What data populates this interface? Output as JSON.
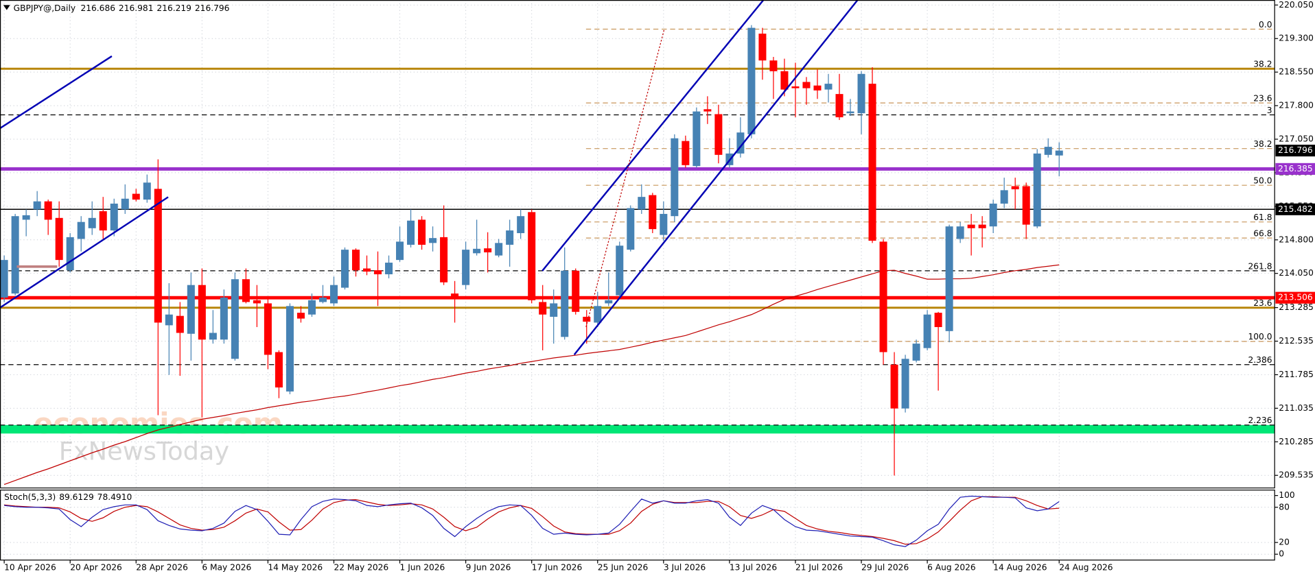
{
  "chart_data": {
    "type": "candlestick",
    "title": "GBPJPY@,Daily",
    "categories": [
      "10 Apr 2026",
      null,
      null,
      null,
      null,
      null,
      "20 Apr 2026",
      null,
      null,
      null,
      null,
      null,
      "28 Apr 2026",
      null,
      null,
      null,
      null,
      null,
      "6 May 2026",
      null,
      null,
      null,
      null,
      null,
      "14 May 2026",
      null,
      null,
      null,
      null,
      null,
      "22 May 2026",
      null,
      null,
      null,
      null,
      null,
      "1 Jun 2026",
      null,
      null,
      null,
      null,
      null,
      "9 Jun 2026",
      null,
      null,
      null,
      null,
      null,
      "17 Jun 2026",
      null,
      null,
      null,
      null,
      null,
      "25 Jun 2026",
      null,
      null,
      null,
      null,
      null,
      "3 Jul 2026",
      null,
      null,
      null,
      null,
      null,
      "13 Jul 2026",
      null,
      null,
      null,
      null,
      null,
      "21 Jul 2026",
      null,
      null,
      null,
      null,
      null,
      "29 Jul 2026",
      null,
      null,
      null,
      null,
      null,
      "6 Aug 2026",
      null,
      null,
      null,
      null,
      null,
      "14 Aug 2026",
      null,
      null,
      null,
      null,
      null,
      "24 Aug 2026"
    ],
    "open": [
      213.51,
      213.6,
      215.25,
      215.48,
      215.66,
      215.29,
      214.12,
      214.82,
      215.06,
      215.44,
      215.01,
      215.48,
      215.83,
      215.7,
      215.94,
      212.89,
      213.1,
      212.7,
      213.79,
      212.57,
      212.57,
      212.14,
      213.92,
      213.45,
      213.38,
      212.29,
      211.41,
      213.17,
      213.13,
      213.41,
      213.38,
      213.73,
      214.58,
      214.16,
      214.12,
      214.03,
      214.35,
      214.69,
      215.25,
      214.73,
      214.86,
      213.6,
      213.79,
      214.5,
      214.61,
      214.45,
      214.69,
      214.95,
      215.42,
      213.41,
      213.08,
      212.63,
      214.11,
      213.08,
      212.95,
      213.38,
      213.56,
      214.58,
      215.48,
      215.8,
      214.91,
      215.33,
      217.01,
      216.45,
      217.72,
      217.61,
      216.47,
      216.73,
      217.16,
      219.41,
      218.81,
      218.57,
      218.23,
      218.33,
      218.25,
      218.16,
      218.06,
      217.63,
      217.63,
      218.29,
      214.76,
      212.01,
      211.03,
      212.1,
      212.38,
      213.17,
      212.76,
      214.82,
      215.14,
      215.14,
      215.1,
      215.61,
      216.0,
      216.0,
      215.1,
      216.7,
      216.686
    ],
    "high": [
      214.45,
      215.38,
      215.48,
      215.89,
      215.7,
      215.66,
      214.95,
      215.33,
      215.66,
      215.76,
      215.72,
      216.04,
      215.94,
      216.26,
      216.6,
      213.83,
      213.41,
      214.07,
      214.16,
      213.23,
      213.69,
      214.07,
      214.16,
      213.79,
      213.51,
      212.33,
      213.38,
      213.32,
      213.6,
      213.79,
      213.98,
      214.63,
      214.61,
      214.45,
      214.54,
      214.45,
      215.1,
      215.48,
      215.33,
      215.1,
      215.57,
      213.88,
      214.76,
      215.25,
      214.97,
      214.82,
      215.25,
      215.48,
      215.48,
      213.79,
      213.69,
      214.63,
      214.16,
      213.23,
      213.64,
      214.07,
      214.76,
      215.57,
      216.04,
      215.85,
      215.66,
      217.16,
      217.13,
      217.76,
      218.01,
      217.82,
      217.07,
      217.54,
      219.6,
      219.54,
      218.89,
      218.85,
      218.76,
      218.44,
      218.61,
      218.51,
      218.51,
      217.95,
      218.57,
      218.66,
      214.82,
      212.29,
      212.23,
      212.57,
      213.23,
      213.19,
      215.14,
      215.2,
      215.38,
      215.33,
      215.7,
      216.19,
      216.19,
      216.08,
      216.83,
      217.07,
      216.981
    ],
    "low": [
      213.41,
      213.56,
      214.88,
      215.33,
      214.91,
      214.2,
      214.07,
      214.54,
      214.91,
      214.82,
      214.88,
      215.38,
      215.66,
      215.63,
      210.88,
      211.78,
      211.76,
      212.1,
      210.83,
      212.48,
      212.48,
      212.1,
      213.38,
      212.85,
      211.91,
      211.26,
      211.35,
      212.95,
      213.08,
      213.38,
      213.32,
      213.69,
      213.98,
      214.01,
      213.32,
      213.94,
      214.31,
      214.63,
      214.58,
      214.54,
      213.79,
      212.95,
      213.69,
      214.45,
      214.07,
      214.41,
      214.2,
      214.82,
      213.38,
      212.33,
      212.48,
      212.57,
      213.13,
      212.48,
      212.85,
      213.32,
      213.51,
      214.54,
      215.38,
      214.95,
      214.78,
      215.2,
      216.41,
      216.41,
      217.39,
      216.51,
      216.41,
      216.64,
      217.07,
      218.38,
      217.95,
      218.01,
      217.54,
      217.82,
      217.95,
      217.87,
      217.48,
      217.57,
      217.16,
      214.73,
      212.01,
      209.53,
      210.94,
      212.06,
      212.33,
      211.43,
      212.51,
      214.73,
      214.45,
      214.63,
      214.95,
      215.51,
      215.48,
      214.82,
      215.06,
      216.64,
      216.219
    ],
    "close": [
      214.35,
      215.33,
      215.35,
      215.66,
      215.25,
      214.35,
      214.86,
      215.2,
      215.29,
      215.01,
      215.61,
      215.72,
      215.7,
      216.08,
      212.95,
      213.13,
      212.72,
      213.79,
      212.57,
      212.72,
      213.51,
      213.92,
      213.41,
      213.38,
      212.23,
      211.5,
      213.32,
      213.04,
      213.45,
      213.51,
      213.79,
      214.58,
      214.12,
      214.09,
      214.03,
      214.29,
      214.76,
      215.23,
      214.69,
      214.84,
      213.85,
      213.51,
      214.58,
      214.6,
      214.52,
      214.73,
      215.01,
      215.33,
      213.45,
      213.13,
      213.38,
      214.11,
      213.19,
      212.97,
      213.32,
      213.45,
      214.67,
      215.51,
      215.76,
      215.04,
      215.38,
      217.07,
      216.47,
      217.67,
      217.67,
      216.7,
      216.73,
      217.2,
      219.54,
      218.81,
      218.57,
      218.16,
      218.19,
      218.19,
      218.14,
      218.29,
      217.54,
      217.67,
      218.51,
      214.78,
      212.29,
      211.03,
      212.14,
      212.48,
      213.13,
      212.85,
      215.1,
      215.1,
      215.06,
      215.06,
      215.61,
      215.91,
      215.93,
      215.14,
      216.73,
      216.88,
      216.796
    ],
    "up_color": "#4682b4",
    "down_color": "#ff0000",
    "ylim": [
      209.253,
      220.162
    ],
    "yticks": [
      {
        "value": 220.05,
        "label": "220.050"
      },
      {
        "value": 219.3,
        "label": "219.300"
      },
      {
        "value": 218.55,
        "label": "218.550"
      },
      {
        "value": 217.8,
        "label": "217.800"
      },
      {
        "value": 217.05,
        "label": "217.050"
      },
      {
        "value": 216.3,
        "label": "216.300"
      },
      {
        "value": 215.55,
        "label": "215.550"
      },
      {
        "value": 214.8,
        "label": "214.800"
      },
      {
        "value": 214.05,
        "label": "214.050"
      },
      {
        "value": 213.285,
        "label": "213.285"
      },
      {
        "value": 212.535,
        "label": "212.535"
      },
      {
        "value": 211.785,
        "label": "211.785"
      },
      {
        "value": 211.035,
        "label": "211.035"
      },
      {
        "value": 210.285,
        "label": "210.285"
      },
      {
        "value": 209.535,
        "label": "209.535"
      }
    ],
    "grid": true,
    "ma": {
      "color": "#c00000",
      "values": [
        209.33,
        209.42,
        209.51,
        209.6,
        209.68,
        209.77,
        209.86,
        209.95,
        210.04,
        210.12,
        210.21,
        210.29,
        210.38,
        210.47,
        210.55,
        210.61,
        210.67,
        210.73,
        210.79,
        210.83,
        210.87,
        210.92,
        210.96,
        211.0,
        211.05,
        211.09,
        211.13,
        211.17,
        211.2,
        211.24,
        211.28,
        211.31,
        211.35,
        211.4,
        211.44,
        211.49,
        211.54,
        211.58,
        211.63,
        211.68,
        211.72,
        211.77,
        211.82,
        211.86,
        211.91,
        211.95,
        211.99,
        212.04,
        212.08,
        212.12,
        212.16,
        212.19,
        212.22,
        212.26,
        212.29,
        212.32,
        212.35,
        212.4,
        212.45,
        212.51,
        212.56,
        212.61,
        212.66,
        212.74,
        212.82,
        212.9,
        212.97,
        213.05,
        213.13,
        213.24,
        213.36,
        213.47,
        213.54,
        213.61,
        213.69,
        213.76,
        213.83,
        213.9,
        213.97,
        214.04,
        214.11,
        214.12,
        214.05,
        213.99,
        213.92,
        213.92,
        213.93,
        213.93,
        213.94,
        213.98,
        214.02,
        214.07,
        214.11,
        214.14,
        214.18,
        214.21,
        214.24
      ]
    },
    "levels": [
      {
        "value": 219.51,
        "label": "0.0",
        "style": "fib",
        "color": "#c8965a"
      },
      {
        "value": 218.625,
        "label": "38.2",
        "style": "thick",
        "color": "#b8860b"
      },
      {
        "value": 217.86,
        "label": "23.6",
        "style": "fib",
        "color": "#c8965a"
      },
      {
        "value": 217.594,
        "label": "3",
        "style": "dashed",
        "color": "#000000"
      },
      {
        "value": 216.84,
        "label": "38.2",
        "style": "fib",
        "color": "#c8965a"
      },
      {
        "value": 216.385,
        "style": "heavy",
        "color": "#9932cc",
        "tag": true
      },
      {
        "value": 216.02,
        "label": "50.0",
        "style": "fib",
        "color": "#c8965a"
      },
      {
        "value": 215.482,
        "style": "solid",
        "color": "#000000",
        "tag": true
      },
      {
        "value": 215.2,
        "label": "61.8",
        "style": "fib",
        "color": "#c8965a"
      },
      {
        "value": 214.84,
        "label": "66.8",
        "style": "fib",
        "color": "#c8965a"
      },
      {
        "value": 214.108,
        "label": "261.8",
        "style": "dashed",
        "color": "#000000"
      },
      {
        "value": 213.506,
        "style": "heavy",
        "color": "#ff0000",
        "tag": true
      },
      {
        "value": 213.283,
        "label": "23.6",
        "style": "thick",
        "color": "#b8860b"
      },
      {
        "value": 212.53,
        "label": "100.0",
        "style": "fib",
        "color": "#c8965a"
      },
      {
        "value": 212.01,
        "label": "2.386",
        "style": "dashed",
        "color": "#000000"
      },
      {
        "value": 210.66,
        "label": "2.236",
        "style": "dashed",
        "color": "#000000"
      }
    ],
    "bands": [
      {
        "from": 210.47,
        "to": 210.66,
        "color": "#00e676"
      }
    ],
    "watermark": {
      "top": "economies.com",
      "bottom": "FxNewsToday"
    },
    "stoch": {
      "title": "Stoch(5,3,3)",
      "ylim": [
        -10,
        108.6
      ],
      "yticks": [
        100,
        80,
        20,
        0
      ],
      "k": {
        "color": "#1e1eb4",
        "values": [
          83,
          81,
          80,
          80,
          79,
          77,
          59,
          47,
          63,
          76,
          81,
          84,
          84,
          76,
          57,
          49,
          43,
          41,
          40,
          44,
          53,
          73,
          83,
          76,
          56,
          34,
          33,
          59,
          81,
          90,
          94,
          93,
          91,
          83,
          81,
          84,
          86,
          87,
          79,
          66,
          44,
          30,
          47,
          61,
          73,
          81,
          84,
          83,
          66,
          44,
          34,
          36,
          34,
          33,
          34,
          36,
          51,
          73,
          94,
          87,
          91,
          87,
          87,
          91,
          93,
          87,
          63,
          49,
          70,
          83,
          76,
          59,
          47,
          41,
          40,
          37,
          34,
          31,
          30,
          29,
          23,
          16,
          13,
          24,
          40,
          51,
          77,
          97,
          99,
          98,
          97,
          97,
          96,
          79,
          74,
          77,
          89.6129
        ]
      },
      "d": {
        "color": "#c00000",
        "values": [
          84,
          82,
          81,
          80,
          80,
          79,
          72,
          61,
          56,
          62,
          73,
          80,
          83,
          81,
          72,
          61,
          50,
          44,
          41,
          42,
          46,
          57,
          70,
          77,
          72,
          55,
          41,
          42,
          58,
          77,
          88,
          92,
          93,
          89,
          85,
          83,
          84,
          86,
          84,
          77,
          63,
          47,
          40,
          46,
          60,
          72,
          79,
          83,
          78,
          64,
          48,
          38,
          35,
          34,
          34,
          34,
          40,
          53,
          73,
          85,
          91,
          88,
          88,
          88,
          90,
          90,
          81,
          66,
          61,
          67,
          76,
          73,
          61,
          49,
          43,
          39,
          37,
          34,
          32,
          30,
          27,
          23,
          17,
          18,
          26,
          38,
          56,
          75,
          91,
          98,
          98,
          97,
          97,
          91,
          83,
          77,
          78.491
        ]
      },
      "d_last_label": "78.4910"
    }
  }
}
